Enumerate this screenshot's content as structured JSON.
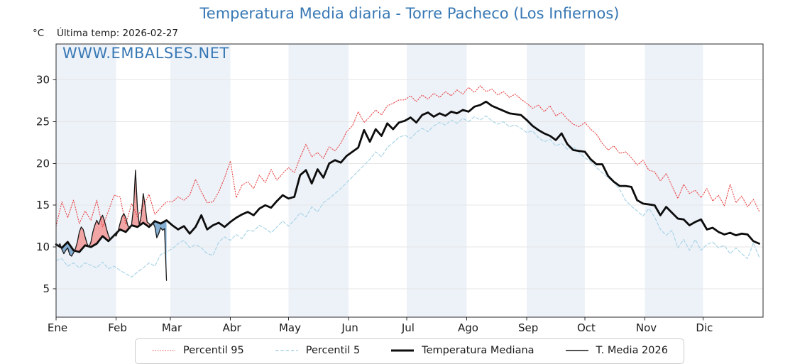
{
  "chart_data": {
    "type": "line",
    "title": "Temperatura Media diaria - Torre Pacheco (Los Infiernos)",
    "subtitle": "Última temp: 2026-02-27",
    "unit": "°C",
    "watermark": "WWW.EMBALSES.NET",
    "colors": {
      "accent": "#3878b4",
      "band": "#edf2f9",
      "grid": "#e5e5e5",
      "axis": "#2a2a2a",
      "p95": "#e84545",
      "p5": "#aad4e6",
      "median": "#0d0d0d",
      "t2026": "#1a1a1a",
      "fill_above": "#f2a5a5",
      "fill_below": "#84aed2"
    },
    "x_axis": {
      "tick_labels": [
        "Ene",
        "Feb",
        "Mar",
        "Abr",
        "May",
        "Jun",
        "Jul",
        "Ago",
        "Sep",
        "Oct",
        "Nov",
        "Dic"
      ],
      "month_start_days": [
        0,
        31,
        59,
        90,
        120,
        151,
        181,
        212,
        243,
        273,
        304,
        334
      ],
      "total_days": 365
    },
    "y_axis": {
      "ticks": [
        5,
        10,
        15,
        20,
        25,
        30
      ],
      "min": 1.6,
      "max": 34.3
    },
    "series": [
      {
        "name": "Percentil 95",
        "key": "p95",
        "style": "dotted",
        "width": 1.1,
        "step_days": 3,
        "values": [
          12.5,
          15.4,
          13.5,
          15.6,
          12.8,
          14.3,
          13.2,
          15.6,
          12.4,
          14.3,
          16.2,
          16.0,
          12.7,
          15.2,
          13.6,
          14.9,
          16.3,
          13.9,
          14.7,
          15.4,
          15.4,
          16.0,
          15.6,
          16.2,
          18.1,
          16.6,
          15.3,
          15.4,
          16.6,
          18.3,
          20.3,
          15.9,
          17.4,
          17.8,
          17.0,
          18.6,
          17.7,
          19.3,
          18.0,
          18.8,
          19.5,
          18.9,
          20.7,
          22.3,
          20.8,
          21.3,
          20.6,
          22.0,
          21.5,
          22.4,
          23.8,
          24.5,
          26.2,
          24.9,
          25.6,
          26.4,
          25.8,
          26.9,
          27.2,
          27.6,
          27.6,
          28.1,
          27.4,
          28.2,
          27.7,
          28.4,
          27.9,
          28.6,
          28.1,
          28.8,
          28.3,
          29.1,
          28.5,
          29.3,
          28.6,
          28.9,
          28.2,
          28.6,
          27.9,
          28.3,
          27.7,
          27.2,
          26.6,
          27.0,
          26.2,
          26.9,
          25.7,
          26.1,
          25.3,
          24.7,
          24.4,
          24.9,
          24.1,
          23.5,
          22.4,
          21.6,
          22.1,
          21.2,
          21.4,
          20.7,
          19.8,
          20.4,
          19.2,
          19.0,
          17.9,
          18.8,
          17.3,
          15.8,
          17.5,
          16.4,
          16.8,
          15.9,
          17.0,
          15.5,
          16.2,
          14.9,
          17.5,
          15.3,
          16.1,
          14.8,
          15.7,
          14.3
        ]
      },
      {
        "name": "Percentil 5",
        "key": "p5",
        "style": "dashed",
        "width": 1.2,
        "step_days": 3,
        "values": [
          8.4,
          8.6,
          7.7,
          8.1,
          7.5,
          8.1,
          7.8,
          7.5,
          8.2,
          7.4,
          7.7,
          7.2,
          6.8,
          6.4,
          7.0,
          7.5,
          8.1,
          7.7,
          9.1,
          9.4,
          9.8,
          10.4,
          10.8,
          9.9,
          10.3,
          9.9,
          9.2,
          9.0,
          10.6,
          11.2,
          10.8,
          11.5,
          11.0,
          12.0,
          11.9,
          12.6,
          12.2,
          11.7,
          12.4,
          13.1,
          12.5,
          13.2,
          14.1,
          13.6,
          14.8,
          14.2,
          15.3,
          15.8,
          16.4,
          17.0,
          17.7,
          18.4,
          19.1,
          19.8,
          20.5,
          21.4,
          20.8,
          21.9,
          22.5,
          23.1,
          23.4,
          23.0,
          23.7,
          24.2,
          23.8,
          24.5,
          24.9,
          24.6,
          25.2,
          24.8,
          25.4,
          25.0,
          25.6,
          25.2,
          25.7,
          25.1,
          24.7,
          25.0,
          24.4,
          24.6,
          24.2,
          23.7,
          23.9,
          23.1,
          22.6,
          22.9,
          22.1,
          22.4,
          21.7,
          22.0,
          21.3,
          20.7,
          20.2,
          19.5,
          18.9,
          18.3,
          17.7,
          16.9,
          15.6,
          14.9,
          14.3,
          13.7,
          14.6,
          13.6,
          12.1,
          11.4,
          12.0,
          9.9,
          10.9,
          9.6,
          10.9,
          9.6,
          10.3,
          10.6,
          9.9,
          10.2,
          9.2,
          9.9,
          9.2,
          8.6,
          10.5,
          8.8
        ]
      },
      {
        "name": "Temperatura Mediana",
        "key": "median",
        "style": "solid",
        "width": 2.8,
        "step_days": 3,
        "values": [
          10.3,
          9.9,
          10.6,
          9.6,
          9.4,
          10.2,
          10.0,
          10.4,
          11.3,
          10.7,
          11.4,
          12.1,
          11.8,
          12.6,
          12.4,
          12.9,
          12.4,
          13.1,
          12.8,
          13.2,
          12.6,
          12.1,
          12.5,
          11.6,
          12.4,
          13.8,
          12.1,
          12.6,
          12.9,
          12.4,
          13.0,
          13.5,
          13.9,
          14.2,
          13.8,
          14.6,
          15.0,
          14.7,
          15.5,
          16.2,
          15.8,
          16.0,
          18.6,
          19.2,
          17.6,
          19.3,
          18.3,
          20.0,
          20.4,
          20.1,
          20.9,
          21.4,
          21.9,
          24.0,
          22.6,
          24.1,
          23.3,
          24.8,
          24.1,
          24.9,
          25.1,
          25.5,
          24.9,
          25.8,
          26.1,
          25.6,
          26.0,
          25.7,
          26.2,
          26.0,
          26.4,
          26.2,
          26.8,
          27.0,
          27.4,
          26.9,
          26.6,
          26.3,
          26.0,
          25.9,
          25.8,
          25.2,
          24.5,
          24.0,
          23.6,
          23.3,
          22.8,
          23.6,
          22.3,
          21.6,
          21.5,
          21.4,
          20.5,
          19.9,
          19.9,
          18.5,
          17.8,
          17.3,
          17.3,
          17.2,
          15.6,
          15.2,
          15.1,
          15.0,
          13.8,
          14.8,
          14.1,
          13.4,
          13.3,
          12.6,
          13.0,
          13.3,
          12.1,
          12.3,
          11.8,
          11.5,
          11.7,
          11.4,
          11.6,
          11.5,
          10.7,
          10.4
        ]
      },
      {
        "name": "T. Media 2026",
        "key": "t2026",
        "style": "solid",
        "width": 1.3,
        "step_days": 1,
        "values": [
          10.4,
          10.1,
          10.4,
          9.7,
          9.2,
          9.6,
          9.9,
          9.1,
          8.9,
          9.3,
          9.8,
          10.6,
          11.8,
          12.4,
          12.1,
          11.2,
          10.4,
          10.0,
          10.6,
          11.8,
          12.6,
          13.2,
          12.7,
          13.4,
          13.8,
          13.1,
          12.2,
          11.4,
          10.9,
          11.2,
          11.5,
          11.3,
          11.9,
          12.8,
          13.6,
          14.0,
          13.5,
          12.6,
          12.2,
          12.7,
          14.8,
          19.2,
          14.6,
          12.6,
          13.8,
          16.4,
          14.9,
          13.0,
          12.8,
          12.5,
          12.9,
          12.4,
          11.1,
          11.6,
          12.3,
          12.0,
          12.2,
          6.0
        ]
      }
    ],
    "fills": {
      "between": [
        "t2026",
        "median"
      ],
      "above": "fill_above",
      "below": "fill_below"
    },
    "legend_position": "bottom-center",
    "grid": true
  }
}
